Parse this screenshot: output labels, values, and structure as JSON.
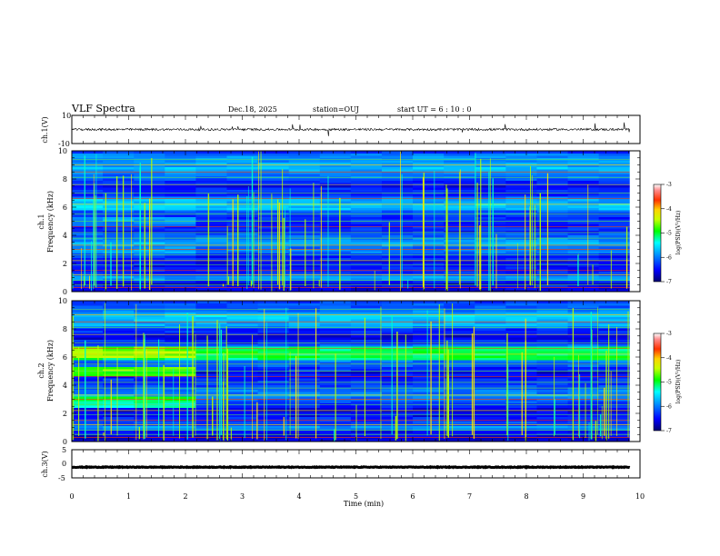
{
  "header": {
    "title": "VLF Spectra",
    "date": "Dec.18, 2025",
    "station": "station=OUJ",
    "start_ut": "start  UT =  6 : 10 : 0"
  },
  "chart_data": [
    {
      "id": "ch1-waveform",
      "type": "line",
      "ylabel": "ch.1(V)",
      "ylim": [
        -10,
        10
      ],
      "yticks": [
        "10",
        "-10"
      ],
      "xlim": [
        0,
        10
      ],
      "signal_end_min": 9.82,
      "baseline": 0.0
    },
    {
      "id": "ch1-spectrogram",
      "type": "heatmap",
      "ylabel": "ch.1\nFrequency  (kHz)",
      "ylabel_lines": [
        "ch.1",
        "Frequency  (kHz)"
      ],
      "ylim": [
        0,
        10
      ],
      "yticks": [
        "0",
        "2",
        "4",
        "6",
        "8",
        "10"
      ],
      "xlim": [
        0,
        10
      ],
      "colorbar": {
        "label": "log(PSD)(V²/Hz)",
        "range": [
          -7,
          -3
        ],
        "ticks": [
          "-3",
          "-4",
          "-5",
          "-6",
          "-7"
        ]
      }
    },
    {
      "id": "ch2-spectrogram",
      "type": "heatmap",
      "ylabel": "ch.2\nFrequency  (kHz)",
      "ylabel_lines": [
        "ch.2",
        "Frequency  (kHz)"
      ],
      "ylim": [
        0,
        10
      ],
      "yticks": [
        "0",
        "2",
        "4",
        "6",
        "8",
        "10"
      ],
      "xlim": [
        0,
        10
      ],
      "colorbar": {
        "label": "log(PSD)(V²/Hz)",
        "range": [
          -7,
          -3
        ],
        "ticks": [
          "-3",
          "-4",
          "-5",
          "-6",
          "-7"
        ]
      }
    },
    {
      "id": "ch3-waveform",
      "type": "line",
      "ylabel": "ch.3(V)",
      "ylim": [
        -5,
        5
      ],
      "yticks": [
        "5",
        "0",
        "-5"
      ],
      "xlim": [
        0,
        10
      ],
      "signal_end_min": 9.82,
      "baseline": -1.2
    }
  ],
  "x_axis": {
    "label": "Time  (min)",
    "range": [
      0,
      10
    ],
    "ticks": [
      "0",
      "1",
      "2",
      "3",
      "4",
      "5",
      "6",
      "7",
      "8",
      "9",
      "10"
    ]
  }
}
